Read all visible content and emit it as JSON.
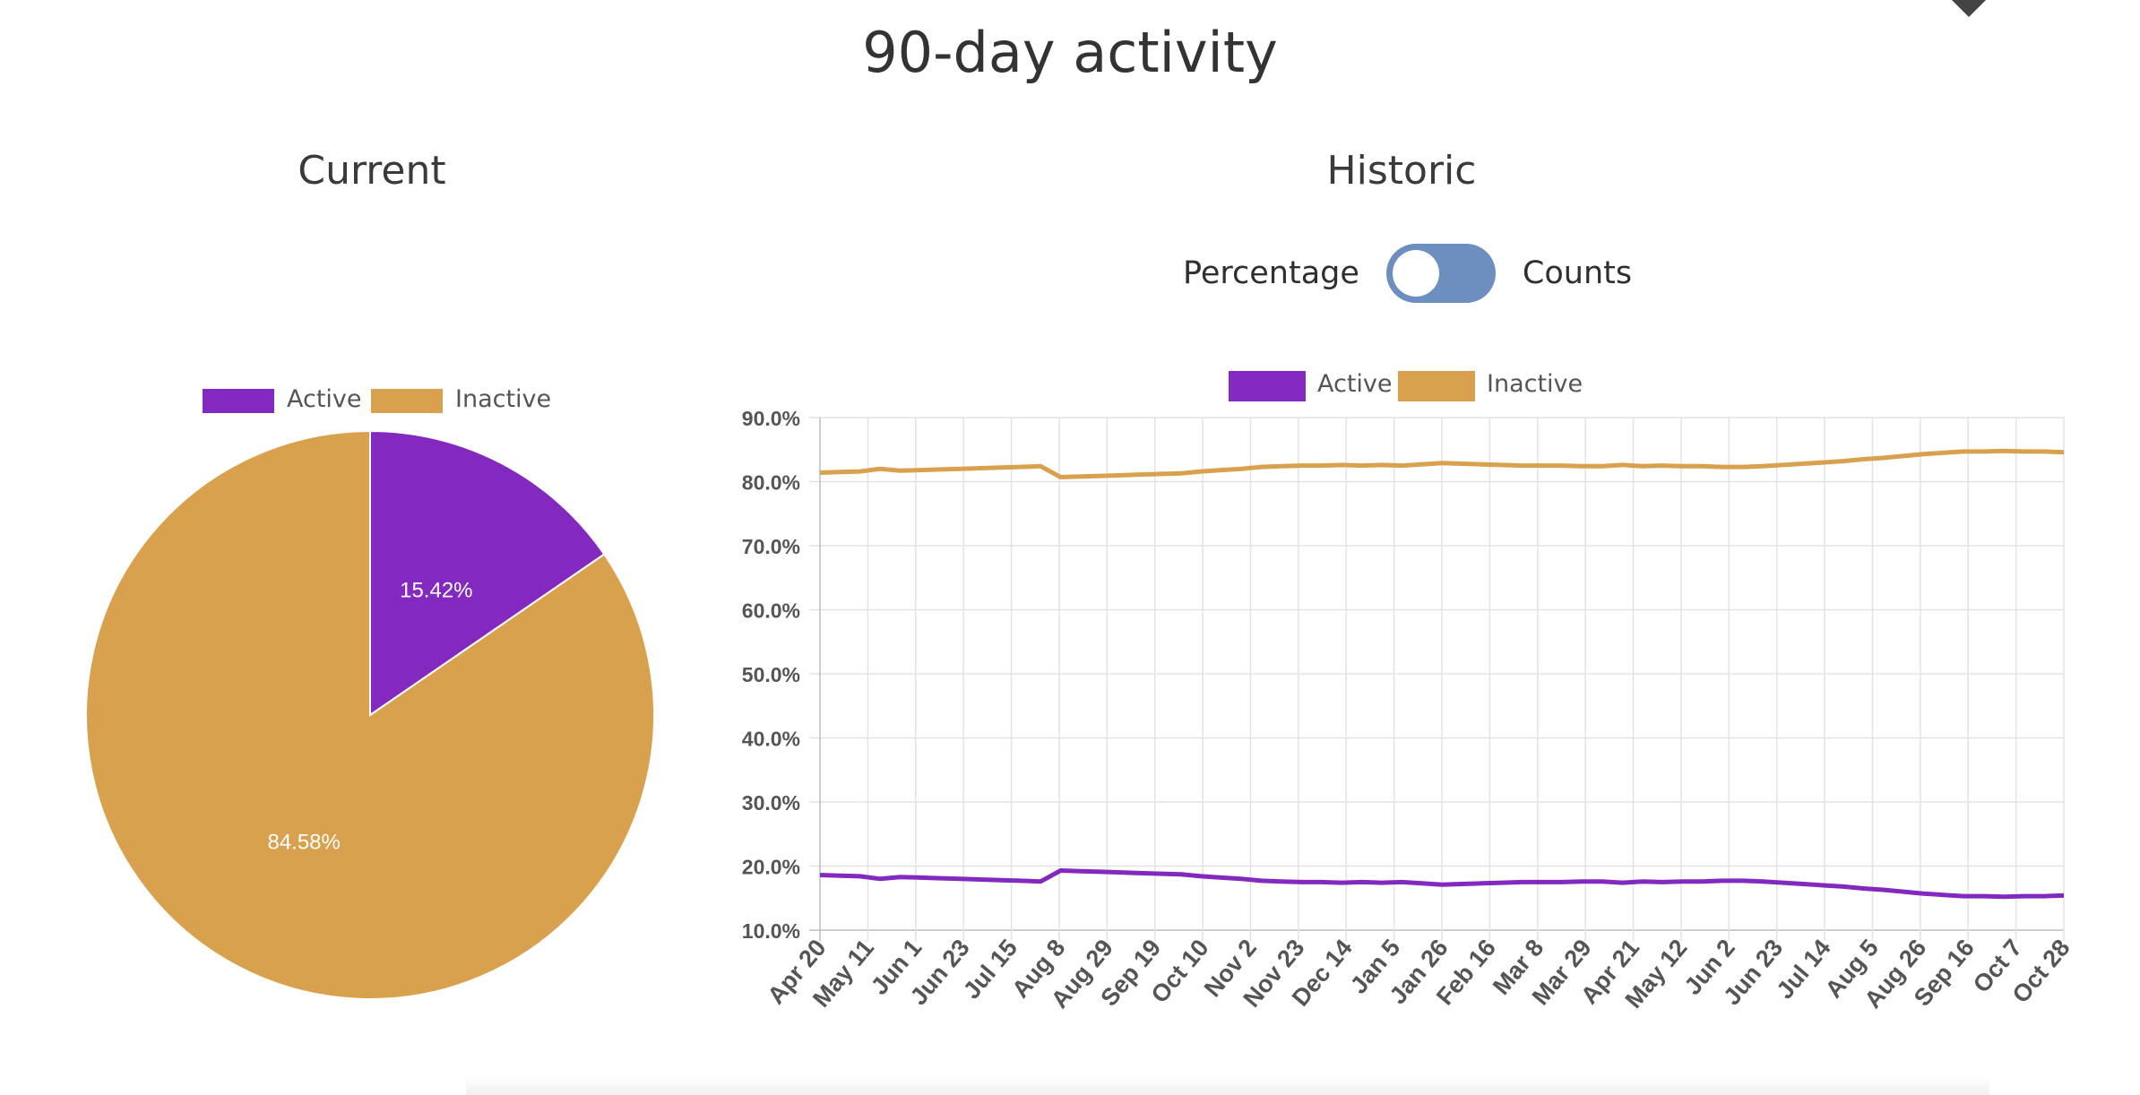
{
  "page": {
    "title": "90-day activity",
    "current_title": "Current",
    "historic_title": "Historic"
  },
  "toggle": {
    "left_label": "Percentage",
    "right_label": "Counts",
    "state": "Percentage"
  },
  "colors": {
    "active": "#8429BF",
    "inactive": "#D9A14E",
    "toggle": "#6C8FBF",
    "grid": "#E3E3E3",
    "axis_text": "#555555"
  },
  "chart_data": [
    {
      "type": "pie",
      "categories": [
        "Active",
        "Inactive"
      ],
      "values": [
        15.42,
        84.58
      ],
      "labels": [
        "15.42%",
        "84.58%"
      ],
      "title": "Current",
      "legend": "top"
    },
    {
      "type": "line",
      "title": "Historic",
      "legend": "top",
      "grid": true,
      "x_tick_labels": [
        "Apr 20",
        "May 11",
        "Jun 1",
        "Jun 23",
        "Jul 15",
        "Aug 8",
        "Aug 29",
        "Sep 19",
        "Oct 10",
        "Nov 2",
        "Nov 23",
        "Dec 14",
        "Jan 5",
        "Jan 26",
        "Feb 16",
        "Mar 8",
        "Mar 29",
        "Apr 21",
        "May 12",
        "Jun 2",
        "Jun 23",
        "Jul 14",
        "Aug 5",
        "Aug 26",
        "Sep 16",
        "Oct 7",
        "Oct 28"
      ],
      "y_tick_labels": [
        "90.0%",
        "80.0%",
        "70.0%",
        "60.0%",
        "50.0%",
        "40.0%",
        "30.0%",
        "20.0%",
        "10.0%"
      ],
      "ylim": [
        10,
        90
      ],
      "series": [
        {
          "name": "Active",
          "values": [
            18.6,
            18.5,
            18.4,
            18.0,
            18.3,
            18.2,
            18.1,
            18.0,
            17.9,
            17.8,
            17.7,
            17.6,
            19.3,
            19.2,
            19.1,
            19.0,
            18.9,
            18.8,
            18.7,
            18.4,
            18.2,
            18.0,
            17.7,
            17.6,
            17.5,
            17.5,
            17.4,
            17.5,
            17.4,
            17.5,
            17.3,
            17.1,
            17.2,
            17.3,
            17.4,
            17.5,
            17.5,
            17.5,
            17.6,
            17.6,
            17.4,
            17.6,
            17.5,
            17.6,
            17.6,
            17.7,
            17.7,
            17.6,
            17.4,
            17.2,
            17.0,
            16.8,
            16.5,
            16.3,
            16.0,
            15.7,
            15.5,
            15.3,
            15.3,
            15.2,
            15.3,
            15.3,
            15.4
          ]
        },
        {
          "name": "Inactive",
          "values": [
            81.4,
            81.5,
            81.6,
            82.0,
            81.7,
            81.8,
            81.9,
            82.0,
            82.1,
            82.2,
            82.3,
            82.4,
            80.7,
            80.8,
            80.9,
            81.0,
            81.1,
            81.2,
            81.3,
            81.6,
            81.8,
            82.0,
            82.3,
            82.4,
            82.5,
            82.5,
            82.6,
            82.5,
            82.6,
            82.5,
            82.7,
            82.9,
            82.8,
            82.7,
            82.6,
            82.5,
            82.5,
            82.5,
            82.4,
            82.4,
            82.6,
            82.4,
            82.5,
            82.4,
            82.4,
            82.3,
            82.3,
            82.4,
            82.6,
            82.8,
            83.0,
            83.2,
            83.5,
            83.7,
            84.0,
            84.3,
            84.5,
            84.7,
            84.7,
            84.8,
            84.7,
            84.7,
            84.6
          ]
        }
      ]
    }
  ]
}
